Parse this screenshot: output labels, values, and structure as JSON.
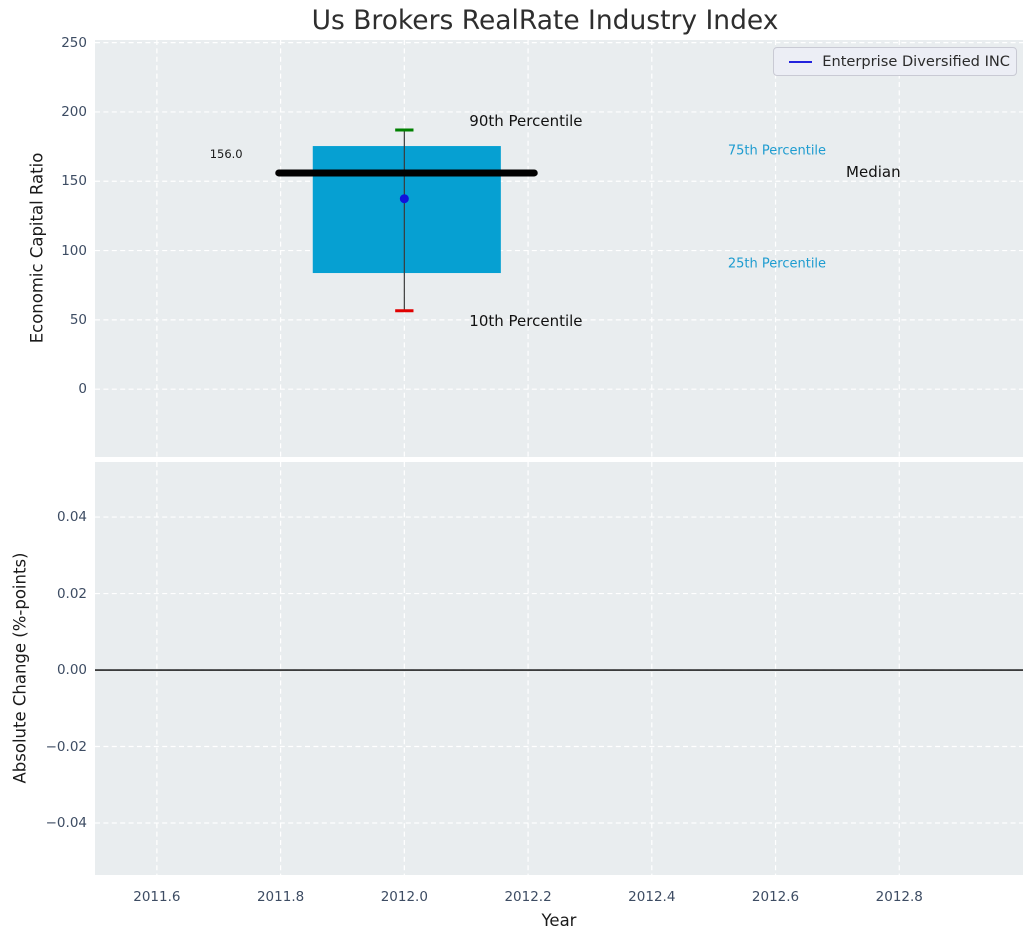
{
  "figure": {
    "title": "Us Brokers RealRate Industry Index",
    "legend": {
      "label": "Enterprise Diversified INC",
      "line_color": "#2222dd"
    }
  },
  "chart_data": [
    {
      "type": "box",
      "title": "Us Brokers RealRate Industry Index",
      "ylabel": "Economic Capital Ratio",
      "ylim": [
        -48.9,
        251.9
      ],
      "yticks": [
        0,
        50,
        100,
        150,
        200,
        250
      ],
      "ytick_labels": [
        "0",
        "50",
        "100",
        "150",
        "200",
        "250"
      ],
      "xlim": [
        2011.5,
        2013.0
      ],
      "xticks": [
        2011.6,
        2011.8,
        2012.0,
        2012.2,
        2012.4,
        2012.6,
        2012.8
      ],
      "grid": true,
      "legend_position": "upper right",
      "series_name": "Enterprise Diversified INC",
      "box": {
        "x_center": 2012.0,
        "x_left": 2011.852,
        "x_right": 2012.156,
        "q25": 83.8,
        "q75": 175.4,
        "median": 156.0,
        "median_x_left": 2011.797,
        "median_x_right": 2012.21,
        "p10": 56.6,
        "p90": 187.0,
        "mean": 137.4,
        "cap_halfwidth": 0.0148
      },
      "colors": {
        "box_fill": "#06a0d2",
        "whisker": "#3a3a3a",
        "p90_cap": "#008000",
        "p10_cap": "#e00000",
        "median": "#000000",
        "mean_dot": "#1111dd"
      },
      "annotations": [
        {
          "name": "median-value-label",
          "text": "156.0",
          "x": 2011.712,
          "y": 170,
          "ha": "center",
          "size": 11.5,
          "color": "#1a1a1a"
        },
        {
          "name": "p90-annotation",
          "text": "90th Percentile",
          "x": 2012.105,
          "y": 193.5,
          "ha": "left",
          "size": 15,
          "color": "#111111"
        },
        {
          "name": "p10-annotation",
          "text": "10th Percentile",
          "x": 2012.105,
          "y": 49,
          "ha": "left",
          "size": 15,
          "color": "#111111"
        },
        {
          "name": "p75-annotation",
          "text": "75th Percentile",
          "x": 2012.523,
          "y": 172,
          "ha": "left",
          "size": 13,
          "color": "#1e9cd0"
        },
        {
          "name": "p25-annotation",
          "text": "25th Percentile",
          "x": 2012.523,
          "y": 90,
          "ha": "left",
          "size": 13,
          "color": "#1e9cd0"
        },
        {
          "name": "median-annotation",
          "text": "Median",
          "x": 2012.714,
          "y": 157,
          "ha": "left",
          "size": 15,
          "color": "#111111"
        }
      ]
    },
    {
      "type": "line",
      "ylabel": "Absolute Change (%-points)",
      "xlabel": "Year",
      "ylim": [
        -0.0536,
        0.0544
      ],
      "yticks": [
        -0.04,
        -0.02,
        0.0,
        0.02,
        0.04
      ],
      "ytick_labels": [
        "−0.04",
        "−0.02",
        "0.00",
        "0.02",
        "0.04"
      ],
      "xlim": [
        2011.5,
        2013.0
      ],
      "xticks": [
        2011.6,
        2011.8,
        2012.0,
        2012.2,
        2012.4,
        2012.6,
        2012.8
      ],
      "xtick_labels": [
        "2011.6",
        "2011.8",
        "2012.0",
        "2012.2",
        "2012.4",
        "2012.6",
        "2012.8"
      ],
      "xtick_labels_visible": true,
      "grid": true,
      "hline": 0.0
    }
  ]
}
